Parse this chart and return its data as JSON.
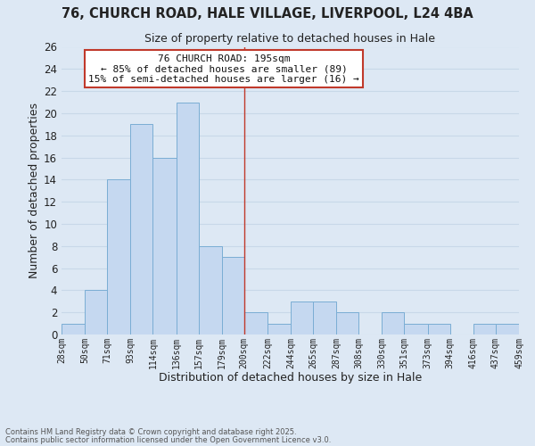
{
  "title1": "76, CHURCH ROAD, HALE VILLAGE, LIVERPOOL, L24 4BA",
  "title2": "Size of property relative to detached houses in Hale",
  "xlabel": "Distribution of detached houses by size in Hale",
  "ylabel": "Number of detached properties",
  "bar_edges": [
    28,
    50,
    71,
    93,
    114,
    136,
    157,
    179,
    200,
    222,
    244,
    265,
    287,
    308,
    330,
    351,
    373,
    394,
    416,
    437,
    459
  ],
  "bar_heights": [
    1,
    4,
    14,
    19,
    16,
    21,
    8,
    7,
    2,
    1,
    3,
    3,
    2,
    0,
    2,
    1,
    1,
    0,
    1,
    1
  ],
  "bar_color": "#c5d8f0",
  "bar_edge_color": "#7aadd4",
  "reference_line_x": 200,
  "reference_line_color": "#c0392b",
  "ylim": [
    0,
    26
  ],
  "yticks": [
    0,
    2,
    4,
    6,
    8,
    10,
    12,
    14,
    16,
    18,
    20,
    22,
    24,
    26
  ],
  "grid_color": "#c8d8e8",
  "background_color": "#dde8f4",
  "annotation_title": "76 CHURCH ROAD: 195sqm",
  "annotation_line1": "← 85% of detached houses are smaller (89)",
  "annotation_line2": "15% of semi-detached houses are larger (16) →",
  "annotation_box_color": "#ffffff",
  "annotation_box_edge": "#c0392b",
  "footnote1": "Contains HM Land Registry data © Crown copyright and database right 2025.",
  "footnote2": "Contains public sector information licensed under the Open Government Licence v3.0.",
  "tick_labels": [
    "28sqm",
    "50sqm",
    "71sqm",
    "93sqm",
    "114sqm",
    "136sqm",
    "157sqm",
    "179sqm",
    "200sqm",
    "222sqm",
    "244sqm",
    "265sqm",
    "287sqm",
    "308sqm",
    "330sqm",
    "351sqm",
    "373sqm",
    "394sqm",
    "416sqm",
    "437sqm",
    "459sqm"
  ]
}
